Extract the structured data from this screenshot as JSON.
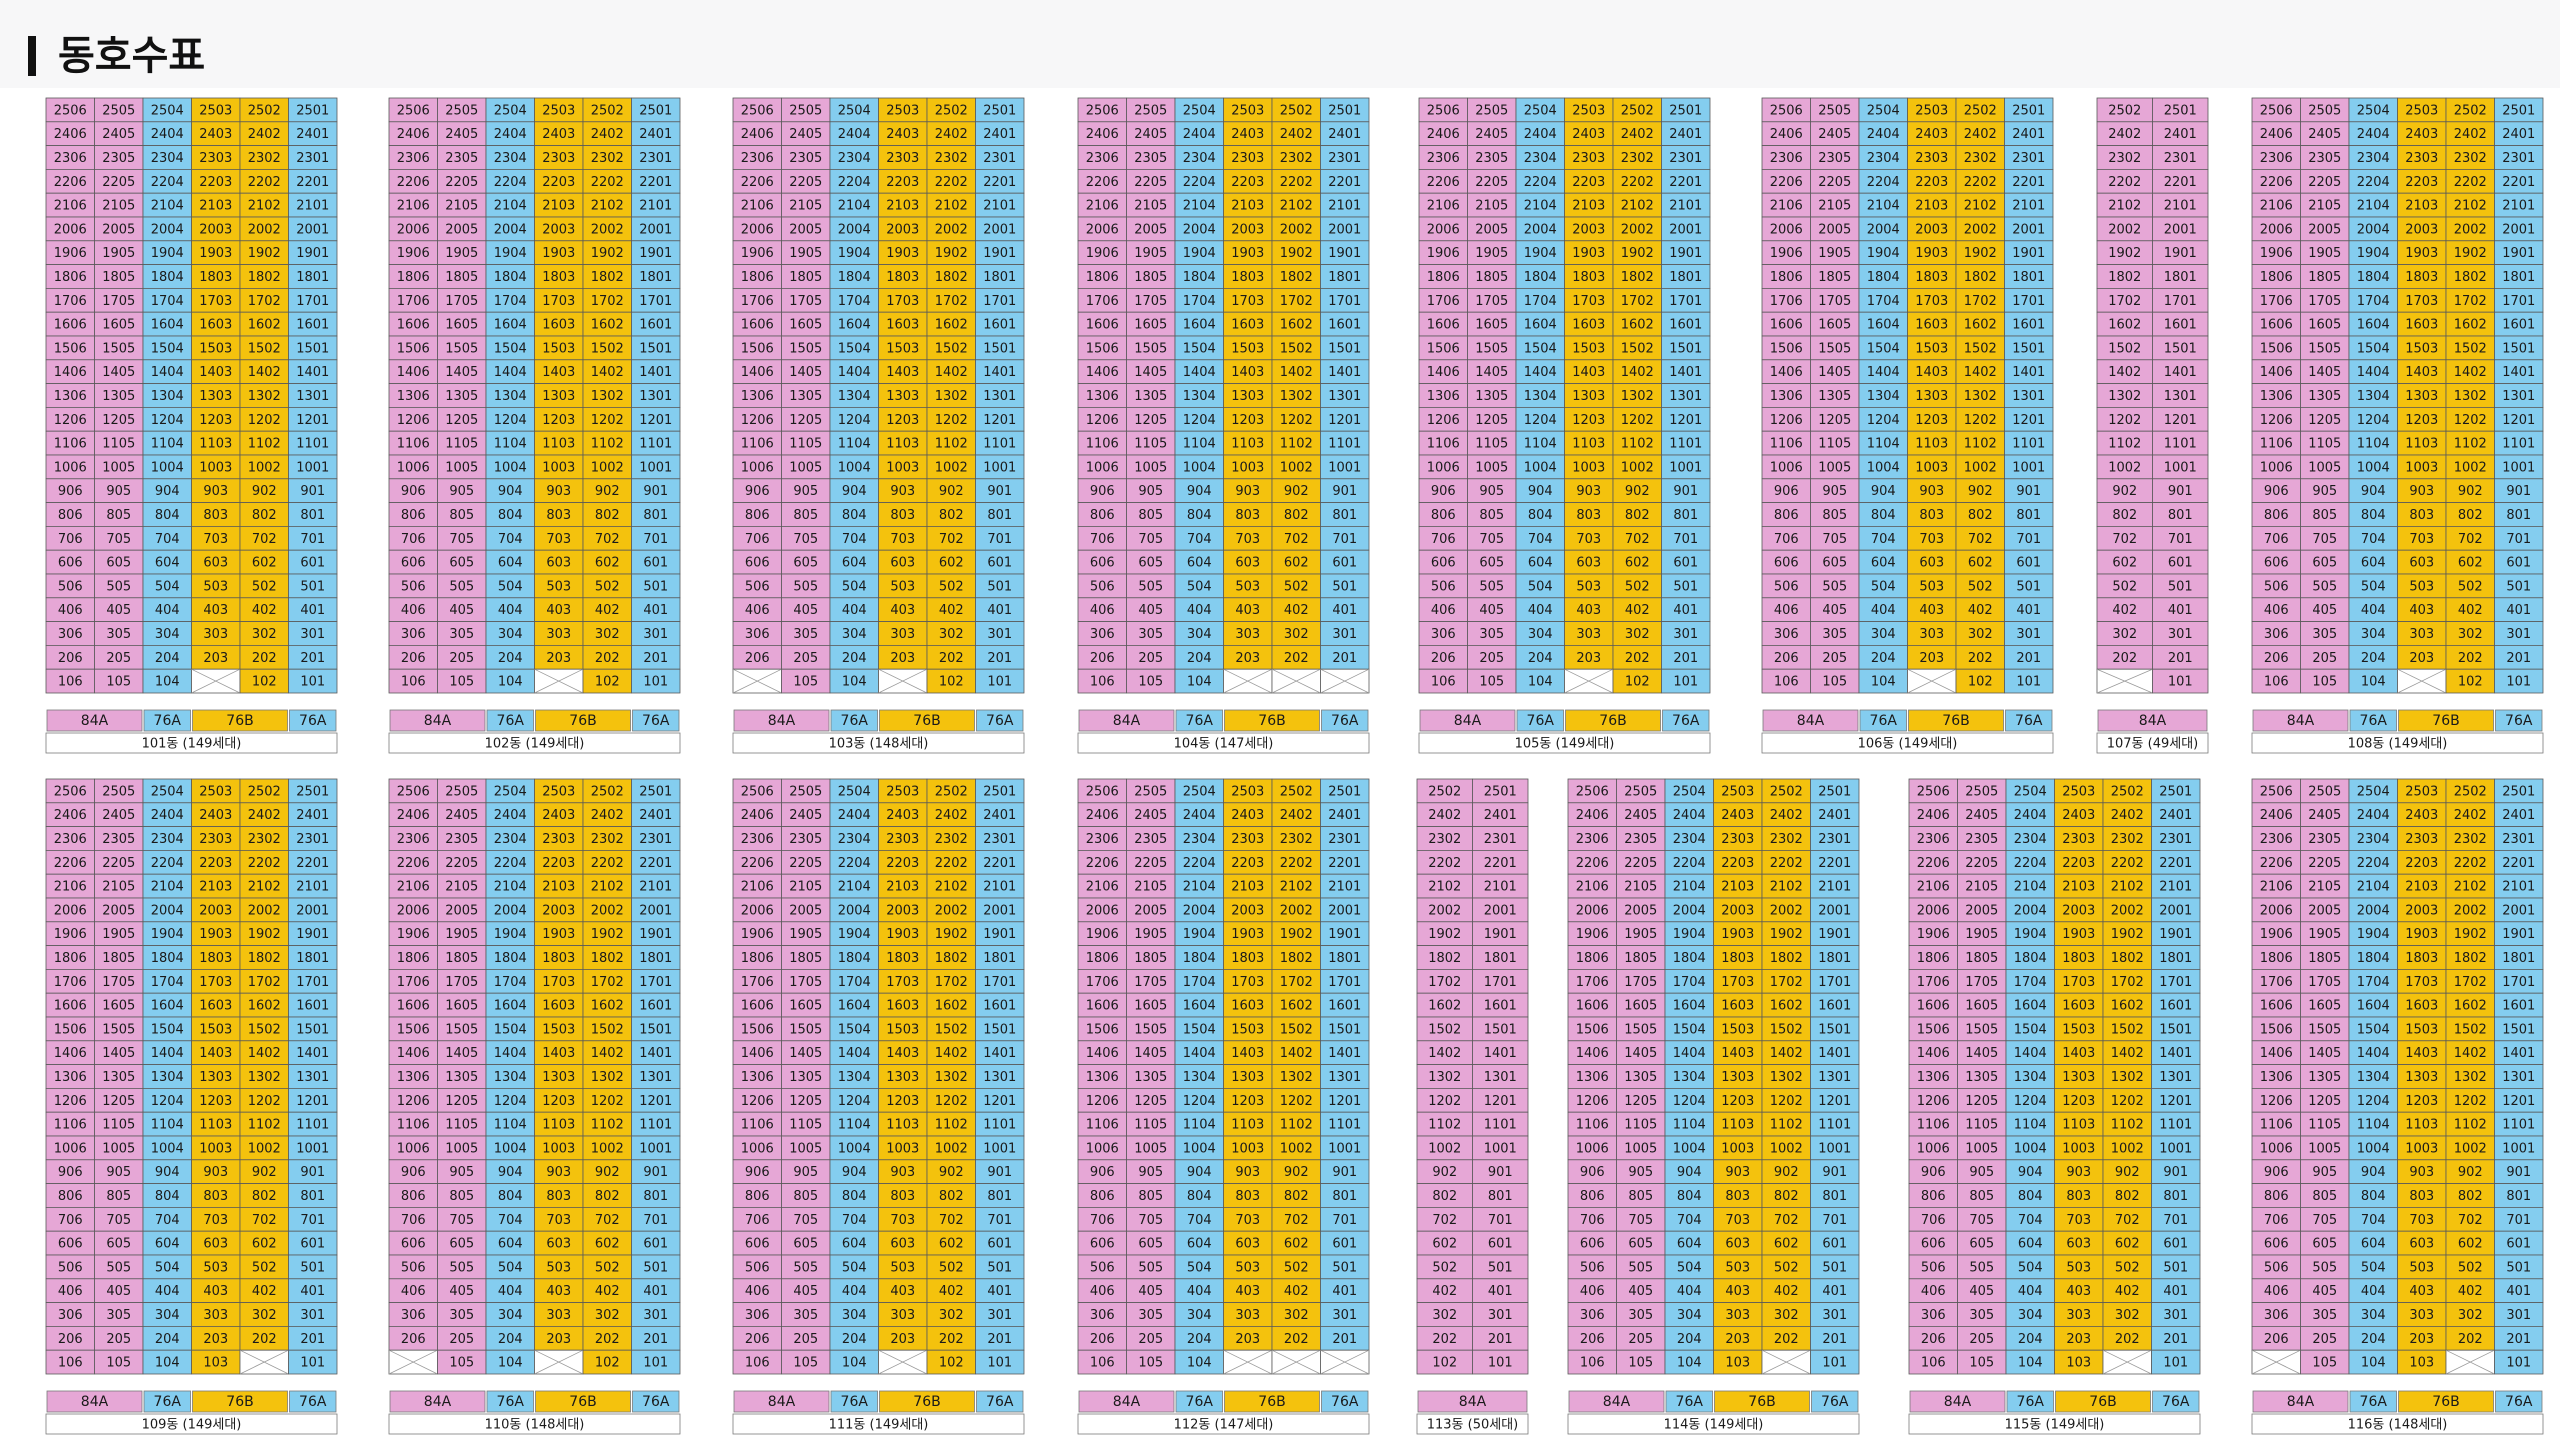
{
  "header": {
    "title": "동호수표"
  },
  "floor_grid": {
    "six_line": [
      [
        "2506",
        "2505",
        "2504",
        "2503",
        "2502",
        "2501"
      ],
      [
        "2406",
        "2405",
        "2404",
        "2403",
        "2402",
        "2401"
      ],
      [
        "2306",
        "2305",
        "2304",
        "2303",
        "2302",
        "2301"
      ],
      [
        "2206",
        "2205",
        "2204",
        "2203",
        "2202",
        "2201"
      ],
      [
        "2106",
        "2105",
        "2104",
        "2103",
        "2102",
        "2101"
      ],
      [
        "2006",
        "2005",
        "2004",
        "2003",
        "2002",
        "2001"
      ],
      [
        "1906",
        "1905",
        "1904",
        "1903",
        "1902",
        "1901"
      ],
      [
        "1806",
        "1805",
        "1804",
        "1803",
        "1802",
        "1801"
      ],
      [
        "1706",
        "1705",
        "1704",
        "1703",
        "1702",
        "1701"
      ],
      [
        "1606",
        "1605",
        "1604",
        "1603",
        "1602",
        "1601"
      ],
      [
        "1506",
        "1505",
        "1504",
        "1503",
        "1502",
        "1501"
      ],
      [
        "1406",
        "1405",
        "1404",
        "1403",
        "1402",
        "1401"
      ],
      [
        "1306",
        "1305",
        "1304",
        "1303",
        "1302",
        "1301"
      ],
      [
        "1206",
        "1205",
        "1204",
        "1203",
        "1202",
        "1201"
      ],
      [
        "1106",
        "1105",
        "1104",
        "1103",
        "1102",
        "1101"
      ],
      [
        "1006",
        "1005",
        "1004",
        "1003",
        "1002",
        "1001"
      ],
      [
        "906",
        "905",
        "904",
        "903",
        "902",
        "901"
      ],
      [
        "806",
        "805",
        "804",
        "803",
        "802",
        "801"
      ],
      [
        "706",
        "705",
        "704",
        "703",
        "702",
        "701"
      ],
      [
        "606",
        "605",
        "604",
        "603",
        "602",
        "601"
      ],
      [
        "506",
        "505",
        "504",
        "503",
        "502",
        "501"
      ],
      [
        "406",
        "405",
        "404",
        "403",
        "402",
        "401"
      ],
      [
        "306",
        "305",
        "304",
        "303",
        "302",
        "301"
      ],
      [
        "206",
        "205",
        "204",
        "203",
        "202",
        "201"
      ]
    ],
    "two_line": [
      [
        "2502",
        "2501"
      ],
      [
        "2402",
        "2401"
      ],
      [
        "2302",
        "2301"
      ],
      [
        "2202",
        "2201"
      ],
      [
        "2102",
        "2101"
      ],
      [
        "2002",
        "2001"
      ],
      [
        "1902",
        "1901"
      ],
      [
        "1802",
        "1801"
      ],
      [
        "1702",
        "1701"
      ],
      [
        "1602",
        "1601"
      ],
      [
        "1502",
        "1501"
      ],
      [
        "1402",
        "1401"
      ],
      [
        "1302",
        "1301"
      ],
      [
        "1202",
        "1201"
      ],
      [
        "1102",
        "1101"
      ],
      [
        "1002",
        "1001"
      ],
      [
        "902",
        "901"
      ],
      [
        "802",
        "801"
      ],
      [
        "702",
        "701"
      ],
      [
        "602",
        "601"
      ],
      [
        "502",
        "501"
      ],
      [
        "402",
        "401"
      ],
      [
        "302",
        "301"
      ],
      [
        "202",
        "201"
      ]
    ]
  },
  "unit_types": {
    "six_line": [
      {
        "label": "84A",
        "color": "#e6a7d6",
        "units": 2
      },
      {
        "label": "76A",
        "color": "#84cdef",
        "units": 1
      },
      {
        "label": "76B",
        "color": "#f4c20d",
        "units": 2
      },
      {
        "label": "76A",
        "color": "#84cdef",
        "units": 1
      }
    ],
    "two_line": [
      {
        "label": "84A",
        "color": "#e6a7d6",
        "units": 2
      }
    ]
  },
  "buildings": [
    {
      "name": "101동 (149세대)",
      "first_floor": [
        "106",
        "105",
        "104",
        null,
        "102",
        "101"
      ]
    },
    {
      "name": "102동 (149세대)",
      "first_floor": [
        "106",
        "105",
        "104",
        null,
        "102",
        "101"
      ]
    },
    {
      "name": "103동 (148세대)",
      "first_floor": [
        null,
        "105",
        "104",
        null,
        "102",
        "101"
      ]
    },
    {
      "name": "104동 (147세대)",
      "first_floor": [
        "106",
        "105",
        "104",
        null,
        null,
        null
      ]
    },
    {
      "name": "105동 (149세대)",
      "first_floor": [
        "106",
        "105",
        "104",
        null,
        "102",
        "101"
      ]
    },
    {
      "name": "106동 (149세대)",
      "first_floor": [
        "106",
        "105",
        "104",
        null,
        "102",
        "101"
      ]
    },
    {
      "name": "107동 (49세대)",
      "first_floor": [
        null,
        "101"
      ]
    },
    {
      "name": "108동 (149세대)",
      "first_floor": [
        "106",
        "105",
        "104",
        null,
        "102",
        "101"
      ]
    },
    {
      "name": "109동 (149세대)",
      "first_floor": [
        "106",
        "105",
        "104",
        "103",
        null,
        "101"
      ]
    },
    {
      "name": "110동 (148세대)",
      "first_floor": [
        null,
        "105",
        "104",
        null,
        "102",
        "101"
      ]
    },
    {
      "name": "111동 (149세대)",
      "first_floor": [
        "106",
        "105",
        "104",
        null,
        "102",
        "101"
      ]
    },
    {
      "name": "112동 (147세대)",
      "first_floor": [
        "106",
        "105",
        "104",
        null,
        null,
        null
      ]
    },
    {
      "name": "113동 (50세대)",
      "first_floor": [
        "102",
        "101"
      ]
    },
    {
      "name": "114동 (149세대)",
      "first_floor": [
        "106",
        "105",
        "104",
        "103",
        null,
        "101"
      ]
    },
    {
      "name": "115동 (149세대)",
      "first_floor": [
        "106",
        "105",
        "104",
        "103",
        null,
        "101"
      ]
    },
    {
      "name": "116동 (148세대)",
      "first_floor": [
        null,
        "105",
        "104",
        "103",
        null,
        "101"
      ]
    }
  ]
}
